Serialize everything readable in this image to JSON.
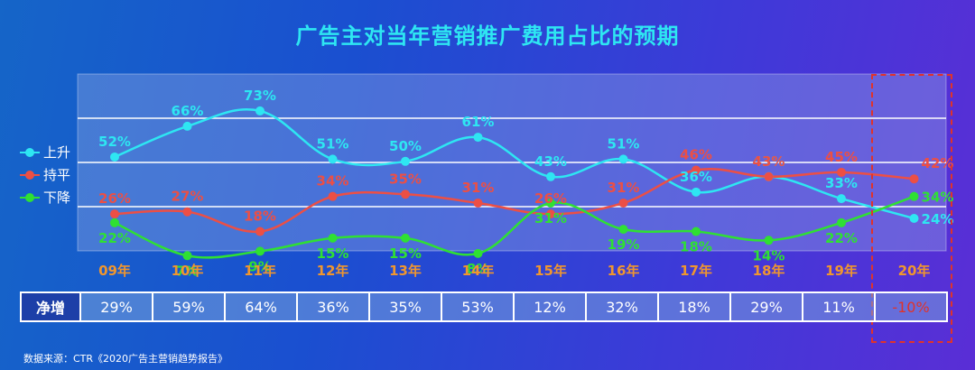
{
  "title": "广告主对当年营销推广费用占比的预期",
  "legend": {
    "up": "上升",
    "flat": "持平",
    "down": "下降"
  },
  "colors": {
    "up": "#2ee6f2",
    "flat": "#ec4f45",
    "down": "#2fe033",
    "year_label": "#f0962e",
    "negative": "#e0332a"
  },
  "chart_data": {
    "type": "line",
    "title": "广告主对当年营销推广费用占比的预期",
    "categories": [
      "09年",
      "10年",
      "11年",
      "12年",
      "13年",
      "14年",
      "15年",
      "16年",
      "17年",
      "18年",
      "19年",
      "20年"
    ],
    "series": [
      {
        "name": "上升",
        "values": [
          52,
          66,
          73,
          51,
          50,
          61,
          43,
          51,
          36,
          43,
          33,
          24
        ],
        "labels": [
          "52%",
          "66%",
          "73%",
          "51%",
          "50%",
          "61%",
          "43%",
          "51%",
          "36%",
          "43%",
          "33%",
          "24%"
        ]
      },
      {
        "name": "持平",
        "values": [
          26,
          27,
          18,
          34,
          35,
          31,
          26,
          31,
          46,
          43,
          45,
          42
        ],
        "labels": [
          "26%",
          "27%",
          "18%",
          "34%",
          "35%",
          "31%",
          "26%",
          "31%",
          "46%",
          "43%",
          "45%",
          "42%"
        ]
      },
      {
        "name": "下降",
        "values": [
          22,
          7,
          9,
          15,
          15,
          8,
          31,
          19,
          18,
          14,
          22,
          34
        ],
        "labels": [
          "22%",
          "7%",
          "9%",
          "15%",
          "15%",
          "8%",
          "31%",
          "19%",
          "18%",
          "14%",
          "22%",
          "34%"
        ]
      }
    ],
    "grid": true,
    "legend_position": "left"
  },
  "net_increase": {
    "label": "净增",
    "values": [
      "29%",
      "59%",
      "64%",
      "36%",
      "35%",
      "53%",
      "12%",
      "32%",
      "18%",
      "29%",
      "11%",
      "-10%"
    ]
  },
  "source": "数据来源：CTR《2020广告主营销趋势报告》"
}
